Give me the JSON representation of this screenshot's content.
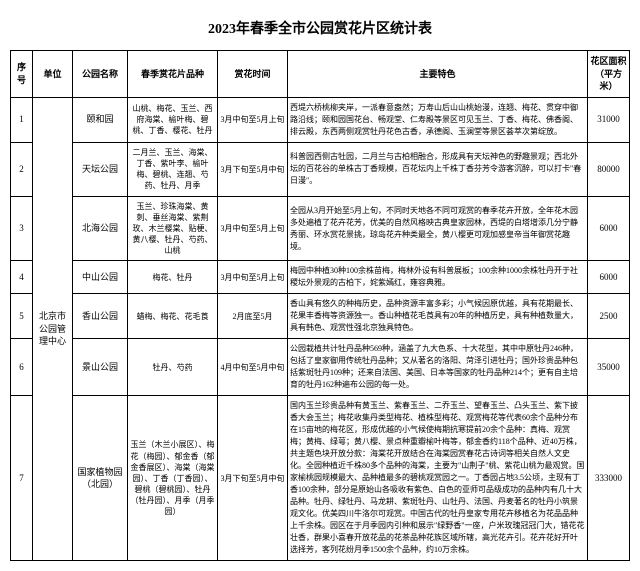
{
  "title": "2023年春季全市公园赏花片区统计表",
  "headers": {
    "seq": "序号",
    "unit": "单位",
    "park": "公园名称",
    "species": "春季赏花片品种",
    "time": "赏花时间",
    "feature": "主要特色",
    "area": "花区面积（平方米）"
  },
  "unit_merged": "北京市公园管理中心",
  "rows": [
    {
      "seq": "1",
      "park": "颐和园",
      "species": "山桃、梅花、玉兰、西府海棠、榆叶梅、碧桃、丁香、樱花、牡丹",
      "time": "3月中旬至5月上旬",
      "feature": "西堤六桥桃柳夹岸，一派春意盎然；万寿山后山山桃始漫，连翘、梅花、贯穿中御路沿线；颐和园国花台、畅观堂、仁寿殿等景区可见玉兰、丁香、梅花、佛香阁、排云殿，东西两侧观赏牡丹花色古香，承德阁、玉澜堂等景区荟萃次第绽放。",
      "area": "31000"
    },
    {
      "seq": "2",
      "park": "天坛公园",
      "species": "二月兰、玉兰、海棠、丁香、紫叶李、榆叶梅、碧桃、连翘、芍药、牡丹、月季",
      "time": "3月下旬至5月中旬",
      "feature": "科普园西侧古牡园，二月兰与古柏相融合，形成具有天坛神色的野趣景观；西北外坛的百花谷的单株古丁香规模，百花坛内上千株丁香芬芳令游客沉醉，可以打卡\"春日漫\"。",
      "area": "80000"
    },
    {
      "seq": "3",
      "park": "北海公园",
      "species": "玉兰、珍珠海棠、黄刺、垂丝海棠、紫荆玫、木兰樱棠、贴梗、黄八樱、牡丹、芍药、山桃",
      "time": "3月中旬至5月上旬",
      "feature": "全园从3月开始至5月上旬，不同时天地各不同可观赏的春季花卉开放，全年花木园多处遍植了花卉花芳，优美的自然风格映古典皇家园林，西堤的白塔增添几分宁静秀丽、环水赏花景挑，琼岛花卉种类最全，黄八樱更可观加感皇帝当年御赏花趣境。",
      "area": "6000"
    },
    {
      "seq": "4",
      "park": "中山公园",
      "species": "梅花、牡丹",
      "time": "3月中旬至5月上旬",
      "feature": "梅园中种植30种100余株苗梅，梅林外设有科普展板；100余种1000余株牡丹开于社稷坛外景观的古柏下，姹紫嫣红，雍容典雅。",
      "area": "6000"
    },
    {
      "seq": "5",
      "park": "香山公园",
      "species": "蜡梅、梅花、花毛莨",
      "time": "2月底至5月",
      "feature": "香山具有悠久的种梅历史，品种资源丰富多彩；小气候因原优越，具有花期最长、花果丰香梅等资源独一。香山种植花毛莨具有20年的种植历史，具有种植数量大，具有韩色、观赏性强北京独具特色。",
      "area": "2500"
    },
    {
      "seq": "6",
      "park": "景山公园",
      "species": "牡丹、芍药",
      "time": "4月中旬至5月中旬",
      "feature": "公园栽植共计牡丹品种569种，涵盖了九大色系、十大花型，其中中原牡丹246种，包括了皇家御用传统牡丹品种；又从著名的洛阳、菏泽引进牡丹；国外珍贵品种包括紫斑牡丹109种；还来自法国、美国、日本等国家的牡丹品种214个；更有自主培育的牡丹162种遍布公园的每一处。",
      "area": "35000"
    },
    {
      "seq": "7",
      "park": "国家植物园（北园）",
      "species": "玉兰（木兰小展区）、梅花（梅园）、郁金香（郁金香展区）、海棠（海棠园）、丁香（丁香园）、碧桃（碧桃园）、牡丹（牡丹园）、月季（月季园）",
      "time": "3月下旬至5月中旬",
      "feature": "国内玉兰珍贵品种有黄玉兰、紫春玉兰、二乔玉兰、望春玉兰、凸头玉兰、紫下披香大会玉兰；梅花收集丹类型梅花、植株型梅花、观赏梅花等代表60余个品种分布在15亩地的梅花区，形成优越的小气候使梅期抗寒提前20余个品种：真梅、观赏梅；黄梅、绿萼；黄八樱、景点种重瓣榆叶梅等，郁金香约118个品种、近40万株，共主题色块开放分款：海棠花开放结合在海棠园赏春花古诗词等相关自然人文史化。全园种植近千株80多个品种的海棠，主要为\"山荆子\"桃、紫花山桃为最观赏。国家榆桃园规模最大、品种植最多的碧桃观赏园之一。丁香园占地3.5公顷，主现有丁香100余种，部分是原始山各吸收有紫色、白色的亚师可品级成功的品种内有几十大品种。牡丹、绿牡丹、马龙耕、紫斑牡丹、山牡丹、法国、丹麦著名的牡丹小筑景观文化。优美四川牛洛尔可观赏。中国古代的牡丹皇家专用花卉移植名为花品品种上千余株。园区在于月季园内引种和展示\"绿野香\"一座，户米玫瑰冠冠门大，错花花壮香，群果小喜春开放花品的花茶品种花族区域所辖，高光花卉引。花卉花好开叶选择芳，客列花纷月季1500余个品种，约10万余株。",
      "area": "333000"
    }
  ]
}
